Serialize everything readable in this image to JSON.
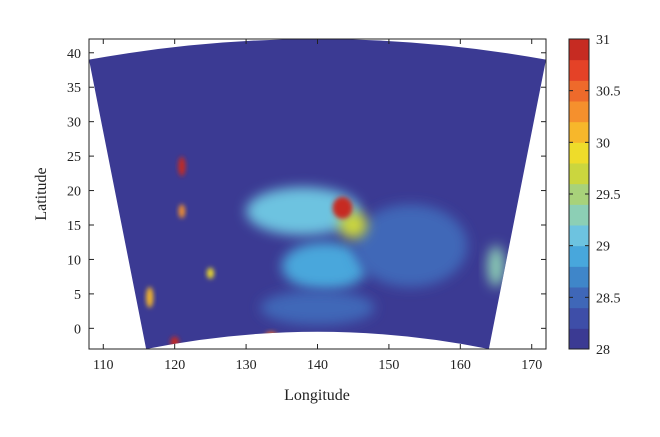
{
  "chart_data": {
    "type": "heatmap",
    "title": "",
    "xlabel": "Longitude",
    "ylabel": "Latitude",
    "xlim": [
      108,
      172
    ],
    "ylim": [
      -3,
      42
    ],
    "xticks": [
      110,
      120,
      130,
      140,
      150,
      160,
      170
    ],
    "yticks": [
      0,
      5,
      10,
      15,
      20,
      25,
      30,
      35,
      40
    ],
    "grid": false,
    "domain_shape": "sector",
    "domain": {
      "top_corners": [
        [
          108,
          39
        ],
        [
          172,
          39
        ]
      ],
      "top_mid_lat": 42,
      "bottom_corners": [
        [
          116,
          -3
        ],
        [
          164,
          -3
        ]
      ],
      "bottom_mid_lat": -0.5
    },
    "background_value": 28.0,
    "colorbar": {
      "min": 28,
      "max": 31,
      "ticks": [
        28,
        28.5,
        29,
        29.5,
        30,
        30.5,
        31
      ],
      "tick_labels": [
        "28",
        "28.5",
        "29",
        "29.5",
        "30",
        "30.5",
        "31"
      ],
      "colors": [
        "#3b3a93",
        "#3e4ea8",
        "#3f67b8",
        "#3f86c9",
        "#48a7dc",
        "#6dc3e0",
        "#8ccfb5",
        "#a8d27a",
        "#cbd63e",
        "#eedc2a",
        "#f7b72b",
        "#f5902d",
        "#ee6a2b",
        "#e44227",
        "#c62b22"
      ]
    },
    "features": [
      {
        "name": "central warm region",
        "lon": 138,
        "lat": 17,
        "r_lon": 8,
        "r_lat": 3.5,
        "value": 29.1
      },
      {
        "name": "central warm region south",
        "lon": 141,
        "lat": 9,
        "r_lon": 6,
        "r_lat": 3.5,
        "value": 28.9
      },
      {
        "name": "eastern belt",
        "lon": 153,
        "lat": 12,
        "r_lon": 8,
        "r_lat": 6,
        "value": 28.5
      },
      {
        "name": "southern belt",
        "lon": 140,
        "lat": 3,
        "r_lon": 8,
        "r_lat": 2.5,
        "value": 28.5
      },
      {
        "name": "east edge blob",
        "lon": 165,
        "lat": 9,
        "r_lon": 1.2,
        "r_lat": 3,
        "value": 29.3
      },
      {
        "name": "secondary peak",
        "lon": 145,
        "lat": 15,
        "r_lon": 2,
        "r_lat": 2,
        "value": 29.6
      },
      {
        "name": "main hotspot",
        "lon": 143.5,
        "lat": 17.5,
        "r_lon": 1.4,
        "r_lat": 1.6,
        "value": 31.0
      },
      {
        "name": "island 1",
        "lon": 121,
        "lat": 23.5,
        "r_lon": 0.5,
        "r_lat": 1.4,
        "value": 30.8
      },
      {
        "name": "island 2",
        "lon": 121,
        "lat": 17,
        "r_lon": 0.45,
        "r_lat": 1,
        "value": 30.3
      },
      {
        "name": "island 3",
        "lon": 125,
        "lat": 8,
        "r_lon": 0.5,
        "r_lat": 0.8,
        "value": 29.9
      },
      {
        "name": "coastal spot",
        "lon": 116.5,
        "lat": 4.5,
        "r_lon": 0.5,
        "r_lat": 1.5,
        "value": 30.2
      },
      {
        "name": "bottom spot 1",
        "lon": 120,
        "lat": -2,
        "r_lon": 0.6,
        "r_lat": 0.8,
        "value": 30.8
      },
      {
        "name": "bottom spot 2",
        "lon": 133.5,
        "lat": -1,
        "r_lon": 0.8,
        "r_lat": 0.5,
        "value": 30.5
      }
    ]
  }
}
